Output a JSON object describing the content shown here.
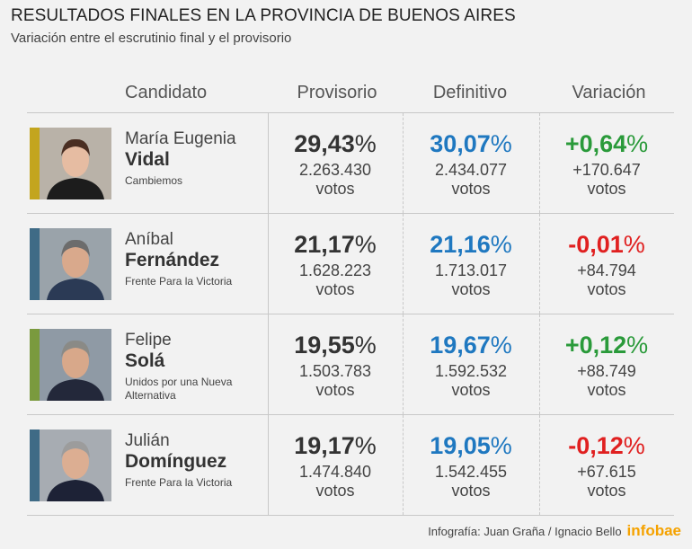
{
  "title": "RESULTADOS FINALES EN LA PROVINCIA DE BUENOS AIRES",
  "subtitle": "Variación entre el escrutinio final y el provisorio",
  "headers": {
    "candidato": "Candidato",
    "provisorio": "Provisorio",
    "definitivo": "Definitivo",
    "variacion": "Variación"
  },
  "colors": {
    "definitivo": "#1f78c0",
    "positive": "#2a9a3a",
    "negative": "#e02020",
    "provisorio": "#333333"
  },
  "votes_label": "votos",
  "chart_data": {
    "type": "table",
    "title": "RESULTADOS FINALES EN LA PROVINCIA DE BUENOS AIRES",
    "subtitle": "Variación entre el escrutinio final y el provisorio",
    "columns": [
      "Candidato",
      "Provisorio",
      "Definitivo",
      "Variación"
    ],
    "rows": [
      {
        "first_name": "María Eugenia",
        "last_name": "Vidal",
        "party": "Cambiemos",
        "party_color": "#c3a51e",
        "provisorio_pct": "29,43",
        "provisorio_votes": "2.263.430",
        "definitivo_pct": "30,07",
        "definitivo_votes": "2.434.077",
        "variacion_pct": "+0,64",
        "variacion_votes": "+170.647",
        "variacion_sign": "positive"
      },
      {
        "first_name": "Aníbal",
        "last_name": "Fernández",
        "party": "Frente Para la Victoria",
        "party_color": "#3f6b86",
        "provisorio_pct": "21,17",
        "provisorio_votes": "1.628.223",
        "definitivo_pct": "21,16",
        "definitivo_votes": "1.713.017",
        "variacion_pct": "-0,01",
        "variacion_votes": "+84.794",
        "variacion_sign": "negative"
      },
      {
        "first_name": "Felipe",
        "last_name": "Solá",
        "party": "Unidos por una Nueva Alternativa",
        "party_color": "#7a9a3e",
        "provisorio_pct": "19,55",
        "provisorio_votes": "1.503.783",
        "definitivo_pct": "19,67",
        "definitivo_votes": "1.592.532",
        "variacion_pct": "+0,12",
        "variacion_votes": "+88.749",
        "variacion_sign": "positive"
      },
      {
        "first_name": "Julián",
        "last_name": "Domínguez",
        "party": "Frente Para la Victoria",
        "party_color": "#3f6b86",
        "provisorio_pct": "19,17",
        "provisorio_votes": "1.474.840",
        "definitivo_pct": "19,05",
        "definitivo_votes": "1.542.455",
        "variacion_pct": "-0,12",
        "variacion_votes": "+67.615",
        "variacion_sign": "negative"
      }
    ]
  },
  "footer": {
    "credit": "Infografía: Juan Graña / Ignacio Bello",
    "brand": "infobae"
  }
}
